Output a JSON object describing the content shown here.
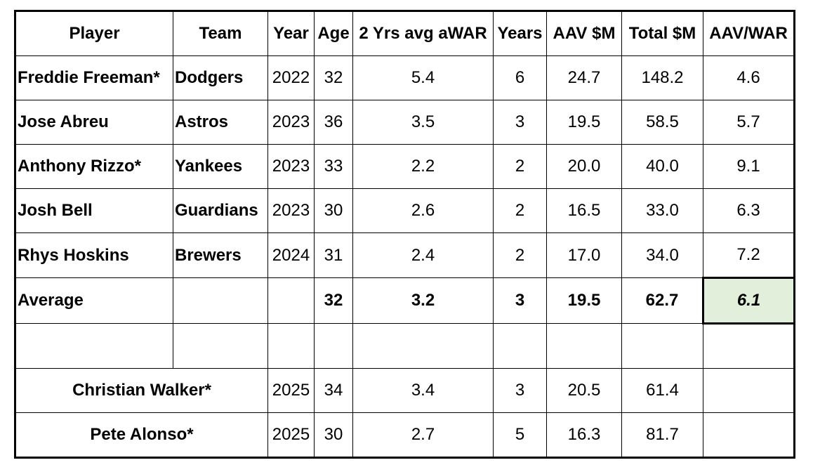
{
  "table": {
    "headers": [
      "Player",
      "Team",
      "Year",
      "Age",
      "2 Yrs avg aWAR",
      "Years",
      "AAV $M",
      "Total $M",
      "AAV/WAR"
    ],
    "rows": [
      {
        "player": "Freddie Freeman*",
        "team": "Dodgers",
        "year": "2022",
        "age": "32",
        "war": "5.4",
        "years": "6",
        "aav": "24.7",
        "total": "148.2",
        "aav_war": "4.6"
      },
      {
        "player": "Jose Abreu",
        "team": "Astros",
        "year": "2023",
        "age": "36",
        "war": "3.5",
        "years": "3",
        "aav": "19.5",
        "total": "58.5",
        "aav_war": "5.7"
      },
      {
        "player": "Anthony Rizzo*",
        "team": "Yankees",
        "year": "2023",
        "age": "33",
        "war": "2.2",
        "years": "2",
        "aav": "20.0",
        "total": "40.0",
        "aav_war": "9.1"
      },
      {
        "player": "Josh Bell",
        "team": "Guardians",
        "year": "2023",
        "age": "30",
        "war": "2.6",
        "years": "2",
        "aav": "16.5",
        "total": "33.0",
        "aav_war": "6.3"
      },
      {
        "player": "Rhys Hoskins",
        "team": "Brewers",
        "year": "2024",
        "age": "31",
        "war": "2.4",
        "years": "2",
        "aav": "17.0",
        "total": "34.0",
        "aav_war": "7.2"
      }
    ],
    "average": {
      "label": "Average",
      "age": "32",
      "war": "3.2",
      "years": "3",
      "aav": "19.5",
      "total": "62.7",
      "aav_war": "6.1"
    },
    "free_agents": [
      {
        "player": "Christian Walker*",
        "year": "2025",
        "age": "34",
        "war": "3.4",
        "years": "3",
        "aav": "20.5",
        "total": "61.4"
      },
      {
        "player": "Pete Alonso*",
        "year": "2025",
        "age": "30",
        "war": "2.7",
        "years": "5",
        "aav": "16.3",
        "total": "81.7"
      }
    ],
    "highlight_color": "#e2efda"
  }
}
